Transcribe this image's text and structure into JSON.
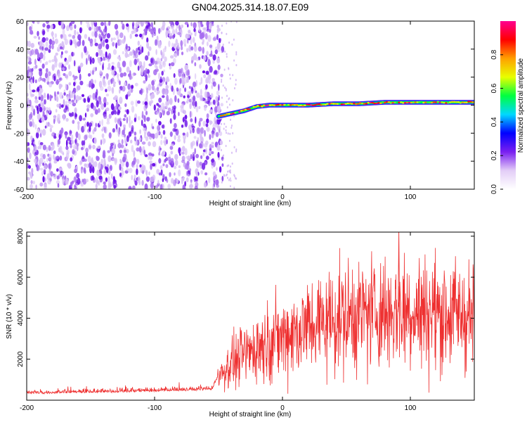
{
  "figure_title": "GN04.2025.314.18.07.E09",
  "chart_data": [
    {
      "type": "heatmap",
      "title": "GN04.2025.314.18.07.E09",
      "xlabel": "Height of straight line (km)",
      "ylabel": "Frequency (Hz)",
      "xlim": [
        -200,
        150
      ],
      "ylim": [
        -60,
        60
      ],
      "xticks": [
        -200,
        -100,
        0,
        100
      ],
      "yticks": [
        -60,
        -40,
        -20,
        0,
        20,
        40,
        60
      ],
      "noise_region_x": [
        -200,
        -50
      ],
      "ridge": {
        "x": [
          -50,
          -45,
          -40,
          -30,
          -20,
          -10,
          0,
          20,
          40,
          60,
          80,
          100,
          120,
          140,
          150
        ],
        "freq": [
          -8,
          -7,
          -6,
          -4,
          -1,
          0,
          0,
          0,
          1,
          1,
          2,
          2,
          2,
          2,
          2
        ]
      },
      "colorbar": {
        "label": "Normalized spectral amplitude",
        "ticks": [
          0.0,
          0.2,
          0.4,
          0.6,
          0.8
        ],
        "tick_labels": [
          "0.0",
          "0.2",
          "0.4",
          "0.6",
          "0.8"
        ],
        "range": [
          0,
          1
        ]
      },
      "colormap": [
        "#ffffff",
        "#e3cdf7",
        "#7a1ff0",
        "#0000ff",
        "#00d8ff",
        "#00ff40",
        "#e8ff00",
        "#ffa000",
        "#ff0000",
        "#ff0090"
      ]
    },
    {
      "type": "line",
      "xlabel": "Height of straight line (km)",
      "ylabel": "SNR (10 * v/v)",
      "xlim": [
        -200,
        150
      ],
      "ylim": [
        0,
        8200
      ],
      "xticks": [
        -200,
        -100,
        0,
        100
      ],
      "yticks": [
        2000,
        4000,
        6000,
        8000
      ],
      "line_color": "#ee3030",
      "series": [
        {
          "name": "SNR",
          "x": [
            -200,
            -175,
            -150,
            -125,
            -100,
            -75,
            -55,
            -50,
            -45,
            -40,
            -35,
            -30,
            -25,
            -20,
            -15,
            -10,
            -5,
            0,
            10,
            20,
            30,
            40,
            50,
            60,
            70,
            80,
            90,
            100,
            110,
            120,
            130,
            140,
            150
          ],
          "values": [
            300,
            330,
            360,
            380,
            420,
            450,
            500,
            1200,
            1500,
            1800,
            2000,
            2200,
            2400,
            2600,
            2750,
            2900,
            3000,
            3100,
            3400,
            3600,
            3800,
            4000,
            4100,
            4200,
            4300,
            4300,
            4400,
            4400,
            4300,
            4300,
            4200,
            4200,
            4000
          ]
        }
      ],
      "peak": {
        "x": 91,
        "value": 8200
      }
    }
  ]
}
